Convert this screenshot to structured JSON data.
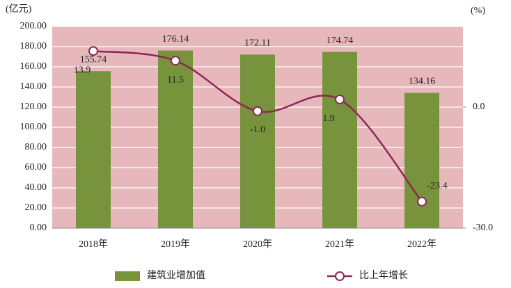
{
  "chart_data": {
    "type": "bar-line",
    "y_unit_label": "(亿元)",
    "y2_unit_label": "(%)",
    "categories": [
      "2018年",
      "2019年",
      "2020年",
      "2021年",
      "2022年"
    ],
    "series": [
      {
        "name": "建筑业增加值",
        "type": "bar",
        "color": "#77933c",
        "values": [
          155.74,
          176.14,
          172.11,
          174.74,
          134.16
        ]
      },
      {
        "name": "比上年增长",
        "type": "line",
        "axis": "y2",
        "color": "#8e2656",
        "values": [
          13.9,
          11.5,
          -1.0,
          1.9,
          -23.4
        ],
        "value_labels": [
          "13.9",
          "11.5",
          "-1.0",
          "1.9",
          "-23.4"
        ]
      }
    ],
    "ylim": [
      0,
      200
    ],
    "yticks": [
      {
        "value": 0,
        "label": "0.00"
      },
      {
        "value": 20,
        "label": "20.00"
      },
      {
        "value": 40,
        "label": "40.00"
      },
      {
        "value": 60,
        "label": "60.00"
      },
      {
        "value": 80,
        "label": "80.00"
      },
      {
        "value": 100,
        "label": "100.00"
      },
      {
        "value": 120,
        "label": "120.00"
      },
      {
        "value": 140,
        "label": "140.00"
      },
      {
        "value": 160,
        "label": "160.00"
      },
      {
        "value": 180,
        "label": "180.00"
      },
      {
        "value": 200,
        "label": "200.00"
      }
    ],
    "y2lim": [
      -30,
      20
    ],
    "y2ticks": [
      {
        "value": -30,
        "label": "-30.0"
      },
      {
        "value": 0,
        "label": "0.0"
      }
    ],
    "grid": true,
    "background": "#e6b8bc"
  }
}
